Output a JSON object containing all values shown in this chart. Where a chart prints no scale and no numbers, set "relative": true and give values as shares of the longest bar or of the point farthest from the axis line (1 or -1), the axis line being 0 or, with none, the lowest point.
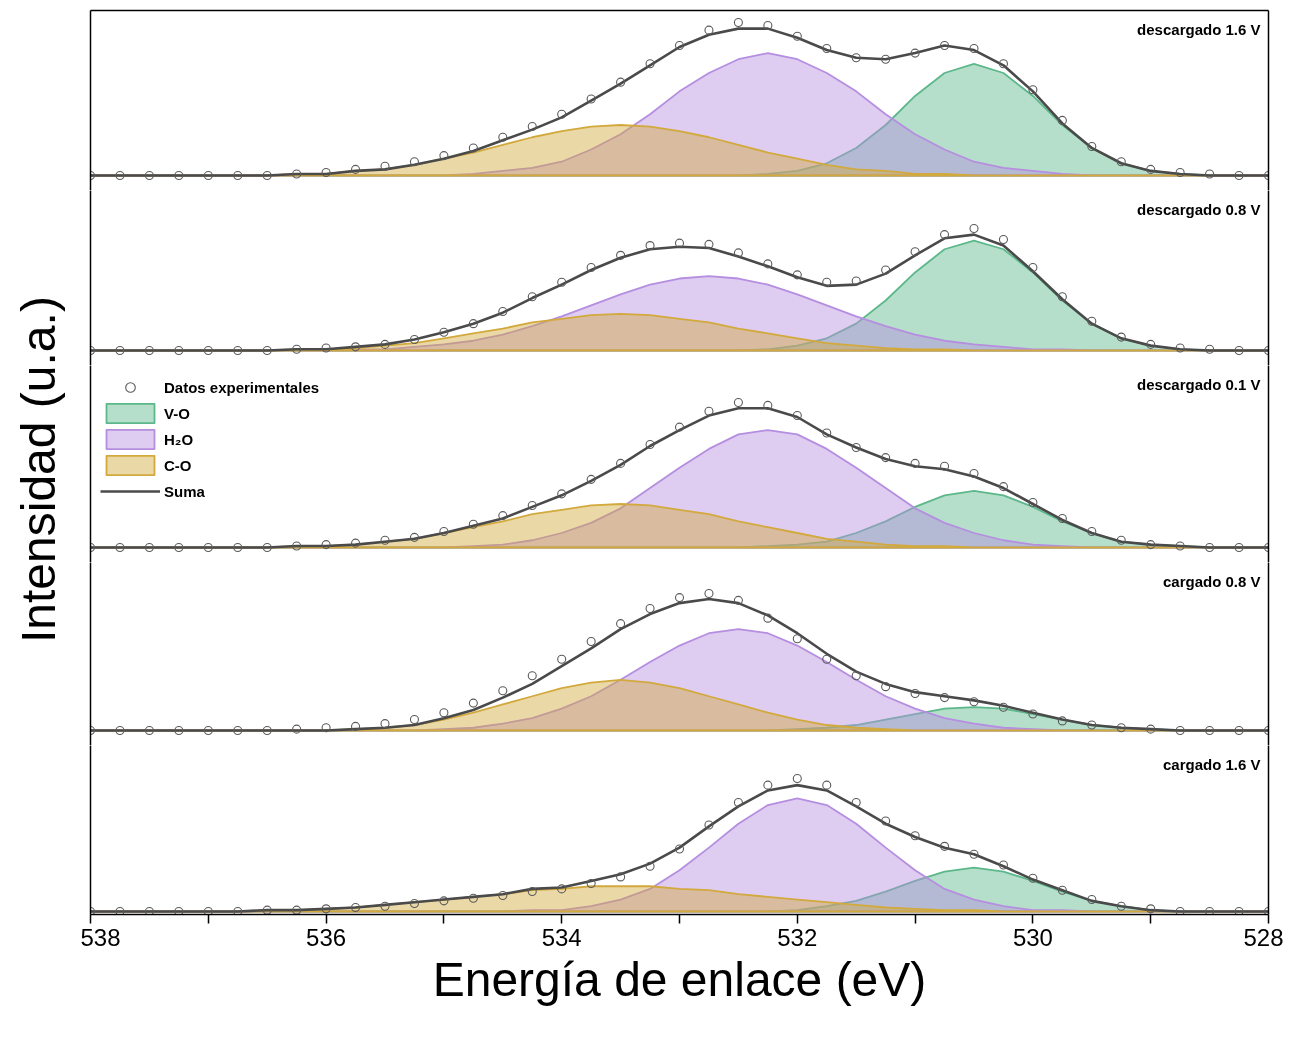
{
  "chart_data": [
    {
      "type": "area",
      "relative": true,
      "tick_labels": false,
      "legend": false,
      "xlim": [
        538,
        528
      ],
      "annotations": [
        "descargado 1.6 V"
      ],
      "x": [
        538,
        537.75,
        537.5,
        537.25,
        537,
        536.75,
        536.5,
        536.25,
        536,
        535.75,
        535.5,
        535.25,
        535,
        534.75,
        534.5,
        534.25,
        534,
        533.75,
        533.5,
        533.25,
        533,
        532.75,
        532.5,
        532.25,
        532,
        531.75,
        531.5,
        531.25,
        531,
        530.75,
        530.5,
        530.25,
        530,
        529.75,
        529.5,
        529.25,
        529,
        528.75,
        528.5,
        528.25,
        528
      ],
      "series": [
        {
          "type": "scatter",
          "marker": "circle",
          "color": "#5a5a5a",
          "values": [
            0,
            0,
            0,
            0,
            0,
            0,
            0,
            0.01,
            0.02,
            0.04,
            0.06,
            0.09,
            0.13,
            0.18,
            0.25,
            0.32,
            0.4,
            0.5,
            0.61,
            0.73,
            0.85,
            0.95,
            1.0,
            0.98,
            0.91,
            0.83,
            0.77,
            0.76,
            0.8,
            0.85,
            0.83,
            0.73,
            0.56,
            0.36,
            0.19,
            0.09,
            0.04,
            0.02,
            0.01,
            0,
            0
          ]
        },
        {
          "color": "#5cb88a",
          "values": [
            0,
            0,
            0,
            0,
            0,
            0,
            0,
            0,
            0,
            0,
            0,
            0,
            0,
            0,
            0,
            0,
            0,
            0,
            0,
            0,
            0,
            0,
            0,
            0.01,
            0.03,
            0.08,
            0.18,
            0.33,
            0.52,
            0.67,
            0.73,
            0.67,
            0.52,
            0.33,
            0.18,
            0.08,
            0.03,
            0.01,
            0,
            0,
            0
          ]
        },
        {
          "color": "#b58ee0",
          "values": [
            0,
            0,
            0,
            0,
            0,
            0,
            0,
            0,
            0,
            0,
            0,
            0,
            0,
            0.01,
            0.03,
            0.05,
            0.09,
            0.17,
            0.27,
            0.4,
            0.55,
            0.67,
            0.76,
            0.8,
            0.76,
            0.67,
            0.55,
            0.4,
            0.27,
            0.17,
            0.09,
            0.05,
            0.03,
            0.01,
            0,
            0,
            0,
            0,
            0,
            0,
            0
          ]
        },
        {
          "color": "#d2a93c",
          "values": [
            0,
            0,
            0,
            0,
            0,
            0,
            0,
            0.01,
            0.01,
            0.03,
            0.04,
            0.07,
            0.11,
            0.15,
            0.2,
            0.25,
            0.29,
            0.32,
            0.33,
            0.32,
            0.29,
            0.25,
            0.2,
            0.15,
            0.11,
            0.07,
            0.04,
            0.03,
            0.01,
            0.01,
            0,
            0,
            0,
            0,
            0,
            0,
            0,
            0,
            0,
            0,
            0
          ]
        },
        {
          "type": "line",
          "color": "#4a4a4a",
          "values": [
            0,
            0,
            0,
            0,
            0,
            0,
            0,
            0.01,
            0.01,
            0.03,
            0.04,
            0.07,
            0.11,
            0.16,
            0.23,
            0.3,
            0.38,
            0.49,
            0.6,
            0.72,
            0.84,
            0.92,
            0.96,
            0.96,
            0.9,
            0.82,
            0.77,
            0.76,
            0.8,
            0.85,
            0.82,
            0.72,
            0.55,
            0.34,
            0.18,
            0.08,
            0.03,
            0.01,
            0,
            0,
            0
          ]
        }
      ]
    },
    {
      "type": "area",
      "relative": true,
      "tick_labels": false,
      "legend": false,
      "xlim": [
        538,
        528
      ],
      "annotations": [
        "descargado 0.8 V"
      ],
      "x": [
        538,
        537.75,
        537.5,
        537.25,
        537,
        536.75,
        536.5,
        536.25,
        536,
        535.75,
        535.5,
        535.25,
        535,
        534.75,
        534.5,
        534.25,
        534,
        533.75,
        533.5,
        533.25,
        533,
        532.75,
        532.5,
        532.25,
        532,
        531.75,
        531.5,
        531.25,
        531,
        530.75,
        530.5,
        530.25,
        530,
        529.75,
        529.5,
        529.25,
        529,
        528.75,
        528.5,
        528.25,
        528
      ],
      "series": [
        {
          "type": "scatter",
          "marker": "circle",
          "color": "#5a5a5a",
          "values": [
            0,
            0,
            0,
            0,
            0,
            0,
            0,
            0.01,
            0.02,
            0.03,
            0.05,
            0.09,
            0.15,
            0.22,
            0.32,
            0.44,
            0.56,
            0.68,
            0.78,
            0.86,
            0.88,
            0.87,
            0.8,
            0.71,
            0.62,
            0.56,
            0.57,
            0.66,
            0.81,
            0.95,
            1.0,
            0.91,
            0.68,
            0.44,
            0.24,
            0.11,
            0.05,
            0.02,
            0.01,
            0,
            0
          ]
        },
        {
          "color": "#5cb88a",
          "values": [
            0,
            0,
            0,
            0,
            0,
            0,
            0,
            0,
            0,
            0,
            0,
            0,
            0,
            0,
            0,
            0,
            0,
            0,
            0,
            0,
            0,
            0,
            0,
            0.01,
            0.04,
            0.1,
            0.22,
            0.41,
            0.64,
            0.83,
            0.9,
            0.83,
            0.64,
            0.41,
            0.22,
            0.1,
            0.04,
            0.01,
            0,
            0,
            0
          ]
        },
        {
          "color": "#b58ee0",
          "values": [
            0,
            0,
            0,
            0,
            0,
            0,
            0,
            0,
            0,
            0.01,
            0.01,
            0.03,
            0.05,
            0.08,
            0.13,
            0.2,
            0.28,
            0.37,
            0.46,
            0.54,
            0.59,
            0.61,
            0.59,
            0.54,
            0.46,
            0.37,
            0.28,
            0.2,
            0.13,
            0.08,
            0.05,
            0.03,
            0.01,
            0.01,
            0,
            0,
            0,
            0,
            0,
            0,
            0
          ]
        },
        {
          "type": "area",
          "color": "#d2a93c",
          "values": [
            0,
            0,
            0,
            0,
            0,
            0,
            0,
            0.01,
            0.01,
            0.02,
            0.04,
            0.06,
            0.1,
            0.14,
            0.18,
            0.23,
            0.26,
            0.29,
            0.3,
            0.29,
            0.26,
            0.23,
            0.18,
            0.14,
            0.1,
            0.06,
            0.04,
            0.02,
            0.01,
            0.01,
            0,
            0,
            0,
            0,
            0,
            0,
            0,
            0,
            0,
            0,
            0
          ]
        },
        {
          "type": "line",
          "color": "#4a4a4a",
          "values": [
            0,
            0,
            0,
            0,
            0,
            0,
            0,
            0.01,
            0.01,
            0.03,
            0.05,
            0.09,
            0.15,
            0.22,
            0.31,
            0.43,
            0.54,
            0.66,
            0.76,
            0.83,
            0.85,
            0.84,
            0.77,
            0.69,
            0.6,
            0.53,
            0.54,
            0.63,
            0.78,
            0.92,
            0.95,
            0.86,
            0.65,
            0.42,
            0.22,
            0.1,
            0.04,
            0.01,
            0,
            0,
            0
          ]
        }
      ]
    },
    {
      "type": "area",
      "relative": true,
      "tick_labels": false,
      "legend": "top left",
      "xlim": [
        538,
        528
      ],
      "ylabel": "Intensidad (u.a.)",
      "annotations": [
        "descargado 0.1 V"
      ],
      "x": [
        538,
        537.75,
        537.5,
        537.25,
        537,
        536.75,
        536.5,
        536.25,
        536,
        535.75,
        535.5,
        535.25,
        535,
        534.75,
        534.5,
        534.25,
        534,
        533.75,
        533.5,
        533.25,
        533,
        532.75,
        532.5,
        532.25,
        532,
        531.75,
        531.5,
        531.25,
        531,
        530.75,
        530.5,
        530.25,
        530,
        529.75,
        529.5,
        529.25,
        529,
        528.75,
        528.5,
        528.25,
        528
      ],
      "series": [
        {
          "type": "scatter",
          "name": "Datos experimentales",
          "marker": "circle",
          "color": "#5a5a5a",
          "values": [
            0,
            0,
            0,
            0,
            0,
            0,
            0,
            0.01,
            0.02,
            0.03,
            0.05,
            0.07,
            0.11,
            0.16,
            0.22,
            0.29,
            0.37,
            0.47,
            0.58,
            0.71,
            0.83,
            0.94,
            1.0,
            0.98,
            0.91,
            0.79,
            0.69,
            0.62,
            0.58,
            0.56,
            0.51,
            0.42,
            0.31,
            0.2,
            0.11,
            0.05,
            0.02,
            0.01,
            0,
            0,
            0
          ]
        },
        {
          "name": "V-O",
          "color": "#5cb88a",
          "values": [
            0,
            0,
            0,
            0,
            0,
            0,
            0,
            0,
            0,
            0,
            0,
            0,
            0,
            0,
            0,
            0,
            0,
            0,
            0,
            0,
            0,
            0,
            0,
            0.01,
            0.02,
            0.04,
            0.1,
            0.18,
            0.28,
            0.36,
            0.39,
            0.36,
            0.28,
            0.18,
            0.1,
            0.04,
            0.02,
            0.01,
            0,
            0,
            0
          ]
        },
        {
          "name": "H₂O",
          "color": "#b58ee0",
          "values": [
            0,
            0,
            0,
            0,
            0,
            0,
            0,
            0,
            0,
            0,
            0,
            0,
            0,
            0.01,
            0.02,
            0.05,
            0.1,
            0.17,
            0.27,
            0.41,
            0.55,
            0.68,
            0.78,
            0.81,
            0.78,
            0.68,
            0.55,
            0.41,
            0.27,
            0.17,
            0.1,
            0.05,
            0.02,
            0.01,
            0,
            0,
            0,
            0,
            0,
            0,
            0
          ]
        },
        {
          "name": "C-O",
          "color": "#d2a93c",
          "values": [
            0,
            0,
            0,
            0,
            0,
            0,
            0,
            0.01,
            0.01,
            0.02,
            0.04,
            0.06,
            0.1,
            0.14,
            0.18,
            0.23,
            0.26,
            0.29,
            0.3,
            0.29,
            0.26,
            0.23,
            0.18,
            0.14,
            0.1,
            0.06,
            0.04,
            0.02,
            0.01,
            0.01,
            0,
            0,
            0,
            0,
            0,
            0,
            0,
            0,
            0,
            0,
            0
          ]
        },
        {
          "type": "line",
          "name": "Suma",
          "color": "#4a4a4a",
          "values": [
            0,
            0,
            0,
            0,
            0,
            0,
            0,
            0.01,
            0.01,
            0.02,
            0.04,
            0.06,
            0.1,
            0.15,
            0.2,
            0.28,
            0.36,
            0.46,
            0.57,
            0.7,
            0.81,
            0.91,
            0.96,
            0.96,
            0.9,
            0.78,
            0.69,
            0.61,
            0.56,
            0.54,
            0.49,
            0.41,
            0.3,
            0.19,
            0.1,
            0.04,
            0.02,
            0.01,
            0,
            0,
            0
          ]
        }
      ]
    },
    {
      "type": "area",
      "relative": true,
      "tick_labels": false,
      "legend": false,
      "xlim": [
        538,
        528
      ],
      "annotations": [
        "cargado 0.8 V"
      ],
      "x": [
        538,
        537.75,
        537.5,
        537.25,
        537,
        536.75,
        536.5,
        536.25,
        536,
        535.75,
        535.5,
        535.25,
        535,
        534.75,
        534.5,
        534.25,
        534,
        533.75,
        533.5,
        533.25,
        533,
        532.75,
        532.5,
        532.25,
        532,
        531.75,
        531.5,
        531.25,
        531,
        530.75,
        530.5,
        530.25,
        530,
        529.75,
        529.5,
        529.25,
        529,
        528.75,
        528.5,
        528.25,
        528
      ],
      "series": [
        {
          "type": "scatter",
          "marker": "circle",
          "color": "#5a5a5a",
          "values": [
            0,
            0,
            0,
            0,
            0,
            0,
            0,
            0.01,
            0.02,
            0.03,
            0.05,
            0.08,
            0.13,
            0.2,
            0.29,
            0.4,
            0.52,
            0.65,
            0.78,
            0.89,
            0.97,
            1.0,
            0.95,
            0.82,
            0.67,
            0.52,
            0.4,
            0.32,
            0.27,
            0.24,
            0.21,
            0.17,
            0.12,
            0.07,
            0.04,
            0.02,
            0.01,
            0,
            0,
            0,
            0
          ]
        },
        {
          "color": "#5cb88a",
          "values": [
            0,
            0,
            0,
            0,
            0,
            0,
            0,
            0,
            0,
            0,
            0,
            0,
            0,
            0,
            0,
            0,
            0,
            0,
            0,
            0,
            0,
            0,
            0,
            0,
            0.01,
            0.02,
            0.04,
            0.08,
            0.12,
            0.16,
            0.17,
            0.16,
            0.12,
            0.08,
            0.04,
            0.02,
            0.01,
            0,
            0,
            0,
            0
          ]
        },
        {
          "color": "#b58ee0",
          "values": [
            0,
            0,
            0,
            0,
            0,
            0,
            0,
            0,
            0,
            0,
            0,
            0,
            0.01,
            0.02,
            0.05,
            0.09,
            0.16,
            0.25,
            0.37,
            0.5,
            0.62,
            0.71,
            0.74,
            0.71,
            0.62,
            0.5,
            0.37,
            0.25,
            0.16,
            0.09,
            0.05,
            0.02,
            0.01,
            0,
            0,
            0,
            0,
            0,
            0,
            0,
            0
          ]
        },
        {
          "color": "#d2a93c",
          "values": [
            0,
            0,
            0,
            0,
            0,
            0,
            0,
            0,
            0,
            0.01,
            0.02,
            0.04,
            0.08,
            0.13,
            0.19,
            0.25,
            0.31,
            0.35,
            0.37,
            0.35,
            0.31,
            0.25,
            0.19,
            0.13,
            0.08,
            0.04,
            0.02,
            0.01,
            0,
            0,
            0,
            0,
            0,
            0,
            0,
            0,
            0,
            0,
            0,
            0,
            0
          ]
        },
        {
          "type": "line",
          "color": "#4a4a4a",
          "values": [
            0,
            0,
            0,
            0,
            0,
            0,
            0,
            0,
            0,
            0.01,
            0.02,
            0.04,
            0.09,
            0.15,
            0.24,
            0.34,
            0.47,
            0.6,
            0.74,
            0.85,
            0.93,
            0.96,
            0.93,
            0.84,
            0.71,
            0.56,
            0.43,
            0.34,
            0.28,
            0.25,
            0.22,
            0.18,
            0.13,
            0.08,
            0.04,
            0.02,
            0.01,
            0,
            0,
            0,
            0
          ]
        }
      ]
    },
    {
      "type": "area",
      "relative": true,
      "tick_labels": "x",
      "legend": false,
      "xlim": [
        538,
        528
      ],
      "xticks": [
        538,
        {
          "value": 537,
          "label": null
        },
        536,
        {
          "value": 535,
          "label": null
        },
        534,
        {
          "value": 533,
          "label": null
        },
        532,
        {
          "value": 531,
          "label": null
        },
        530,
        {
          "value": 529,
          "label": null
        },
        528
      ],
      "xlabel": "Energía de enlace (eV)",
      "annotations": [
        "cargado 1.6 V"
      ],
      "x": [
        538,
        537.75,
        537.5,
        537.25,
        537,
        536.75,
        536.5,
        536.25,
        536,
        535.75,
        535.5,
        535.25,
        535,
        534.75,
        534.5,
        534.25,
        534,
        533.75,
        533.5,
        533.25,
        533,
        532.75,
        532.5,
        532.25,
        532,
        531.75,
        531.5,
        531.25,
        531,
        530.75,
        530.5,
        530.25,
        530,
        529.75,
        529.5,
        529.25,
        529,
        528.75,
        528.5,
        528.25,
        528
      ],
      "series": [
        {
          "type": "scatter",
          "marker": "circle",
          "color": "#5a5a5a",
          "values": [
            0,
            0,
            0,
            0,
            0,
            0,
            0.01,
            0.01,
            0.02,
            0.03,
            0.04,
            0.06,
            0.08,
            0.1,
            0.12,
            0.15,
            0.17,
            0.21,
            0.26,
            0.34,
            0.47,
            0.65,
            0.82,
            0.95,
            1.0,
            0.95,
            0.82,
            0.68,
            0.57,
            0.49,
            0.43,
            0.35,
            0.25,
            0.16,
            0.09,
            0.04,
            0.02,
            0,
            0,
            0,
            0
          ]
        },
        {
          "color": "#5cb88a",
          "values": [
            0,
            0,
            0,
            0,
            0,
            0,
            0,
            0,
            0,
            0,
            0,
            0,
            0,
            0,
            0,
            0,
            0,
            0,
            0,
            0,
            0,
            0,
            0,
            0,
            0.01,
            0.04,
            0.08,
            0.15,
            0.23,
            0.3,
            0.33,
            0.3,
            0.23,
            0.15,
            0.08,
            0.04,
            0.01,
            0,
            0,
            0,
            0
          ]
        },
        {
          "color": "#b58ee0",
          "values": [
            0,
            0,
            0,
            0,
            0,
            0,
            0,
            0,
            0,
            0,
            0,
            0,
            0,
            0,
            0,
            0.01,
            0.01,
            0.04,
            0.09,
            0.17,
            0.31,
            0.48,
            0.66,
            0.8,
            0.85,
            0.8,
            0.66,
            0.48,
            0.31,
            0.17,
            0.09,
            0.04,
            0.01,
            0.01,
            0,
            0,
            0,
            0,
            0,
            0,
            0
          ]
        },
        {
          "color": "#d2a93c",
          "values": [
            0,
            0,
            0,
            0,
            0,
            0,
            0.01,
            0.01,
            0.02,
            0.03,
            0.05,
            0.07,
            0.09,
            0.11,
            0.13,
            0.16,
            0.17,
            0.19,
            0.19,
            0.19,
            0.17,
            0.16,
            0.13,
            0.11,
            0.09,
            0.07,
            0.05,
            0.03,
            0.02,
            0.01,
            0.01,
            0,
            0,
            0,
            0,
            0,
            0,
            0,
            0,
            0,
            0
          ]
        },
        {
          "type": "line",
          "color": "#4a4a4a",
          "values": [
            0,
            0,
            0,
            0,
            0,
            0,
            0.01,
            0.01,
            0.02,
            0.03,
            0.05,
            0.07,
            0.09,
            0.11,
            0.13,
            0.17,
            0.18,
            0.23,
            0.28,
            0.36,
            0.48,
            0.64,
            0.79,
            0.91,
            0.95,
            0.91,
            0.79,
            0.66,
            0.56,
            0.48,
            0.43,
            0.34,
            0.24,
            0.16,
            0.08,
            0.04,
            0.01,
            0,
            0,
            0,
            0
          ]
        }
      ]
    }
  ]
}
